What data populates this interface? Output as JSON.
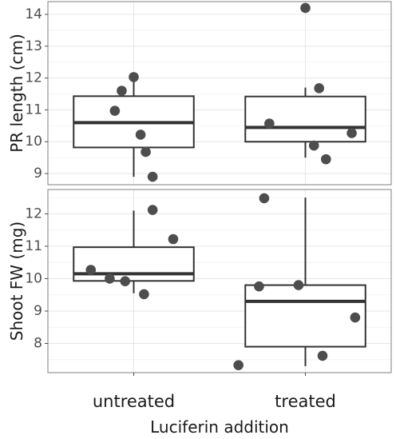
{
  "chart_data": {
    "type": "boxplot-with-points",
    "xlabel": "Luciferin addition",
    "categories": [
      "untreated",
      "treated"
    ],
    "grid": true,
    "theme_colors": {
      "panel_background": "#ffffff",
      "panel_border": "#7f7f7f",
      "grid_major": "#e6e6e6",
      "grid_minor": "#f4f4f4",
      "box_stroke": "#333333",
      "point_fill": "#4d4d4d",
      "text": "#1a1a1a",
      "tick_text": "#4d4d4d"
    },
    "panels": [
      {
        "ylabel": "PR length (cm)",
        "ylim": [
          8.65,
          14.4
        ],
        "yticks": [
          9,
          10,
          11,
          12,
          13,
          14
        ],
        "boxes": [
          {
            "category": "untreated",
            "min": 8.9,
            "q1": 9.82,
            "median": 10.6,
            "q3": 11.43,
            "max": 12.0
          },
          {
            "category": "treated",
            "min": 9.5,
            "q1": 10.0,
            "median": 10.45,
            "q3": 11.42,
            "max": 11.7
          }
        ],
        "points": [
          {
            "category": "untreated",
            "jitter": -0.11,
            "y": 10.97
          },
          {
            "category": "untreated",
            "jitter": -0.07,
            "y": 11.6
          },
          {
            "category": "untreated",
            "jitter": 0.0,
            "y": 12.03
          },
          {
            "category": "untreated",
            "jitter": 0.04,
            "y": 10.22
          },
          {
            "category": "untreated",
            "jitter": 0.07,
            "y": 9.68
          },
          {
            "category": "untreated",
            "jitter": 0.11,
            "y": 8.9
          },
          {
            "category": "treated",
            "jitter": -0.21,
            "y": 10.57
          },
          {
            "category": "treated",
            "jitter": 0.0,
            "y": 14.2
          },
          {
            "category": "treated",
            "jitter": 0.05,
            "y": 9.88
          },
          {
            "category": "treated",
            "jitter": 0.08,
            "y": 11.68
          },
          {
            "category": "treated",
            "jitter": 0.12,
            "y": 9.45
          },
          {
            "category": "treated",
            "jitter": 0.27,
            "y": 10.27
          }
        ]
      },
      {
        "ylabel": "Shoot FW (mg)",
        "ylim": [
          7.1,
          12.75
        ],
        "yticks": [
          8,
          9,
          10,
          11,
          12
        ],
        "boxes": [
          {
            "category": "untreated",
            "min": 9.55,
            "q1": 9.93,
            "median": 10.15,
            "q3": 10.97,
            "max": 12.1
          },
          {
            "category": "treated",
            "min": 7.3,
            "q1": 7.9,
            "median": 9.3,
            "q3": 9.8,
            "max": 12.5
          }
        ],
        "points": [
          {
            "category": "untreated",
            "jitter": -0.25,
            "y": 10.27
          },
          {
            "category": "untreated",
            "jitter": -0.14,
            "y": 10.0
          },
          {
            "category": "untreated",
            "jitter": -0.05,
            "y": 9.92
          },
          {
            "category": "untreated",
            "jitter": 0.06,
            "y": 9.52
          },
          {
            "category": "untreated",
            "jitter": 0.11,
            "y": 12.12
          },
          {
            "category": "untreated",
            "jitter": 0.23,
            "y": 11.22
          },
          {
            "category": "treated",
            "jitter": -0.39,
            "y": 7.33
          },
          {
            "category": "treated",
            "jitter": -0.27,
            "y": 9.76
          },
          {
            "category": "treated",
            "jitter": -0.24,
            "y": 12.48
          },
          {
            "category": "treated",
            "jitter": -0.04,
            "y": 9.8
          },
          {
            "category": "treated",
            "jitter": 0.1,
            "y": 7.62
          },
          {
            "category": "treated",
            "jitter": 0.29,
            "y": 8.8
          }
        ]
      }
    ]
  }
}
